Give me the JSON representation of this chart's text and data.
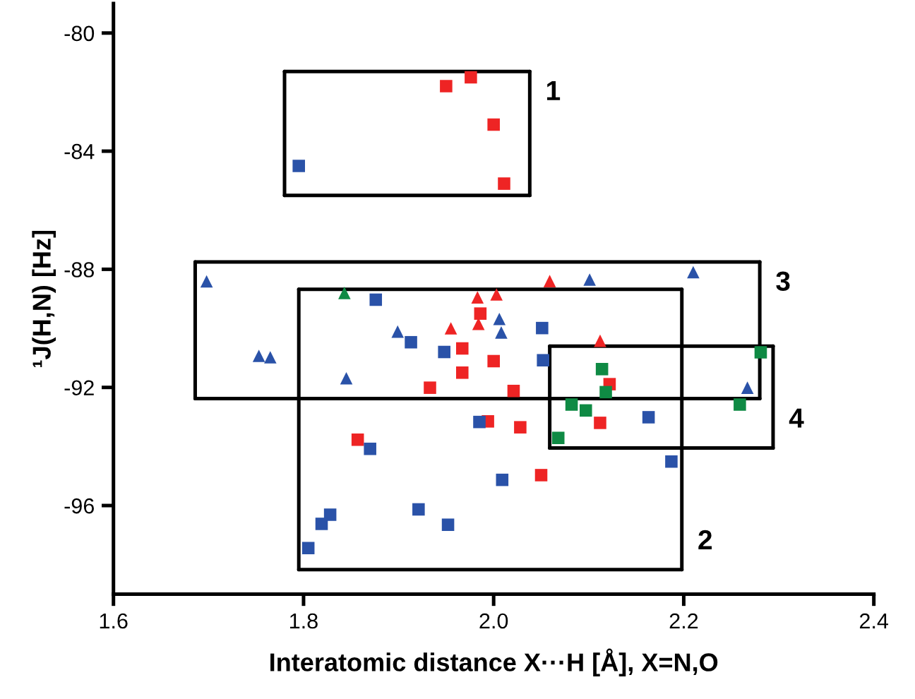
{
  "chart_data": {
    "type": "scatter",
    "xlabel": "Interatomic distance X···H [Å], X=N,O",
    "ylabel": "¹J(H,N) [Hz]",
    "xlim": [
      1.6,
      2.4
    ],
    "xticks": [
      {
        "value": 1.6,
        "label": "1.6"
      },
      {
        "value": 1.8,
        "label": "1.8"
      },
      {
        "value": 2.0,
        "label": "2.0"
      },
      {
        "value": 2.2,
        "label": "2.2"
      },
      {
        "value": 2.4,
        "label": "2.4"
      }
    ],
    "ylim": [
      -99,
      -79
    ],
    "yticks": [
      -80,
      -84,
      -88,
      -92,
      -96
    ],
    "grid": false,
    "legend": false,
    "series": [
      {
        "marker": "square",
        "color": "#ee2424",
        "x": [
          1.95,
          1.976,
          2.0,
          2.011,
          1.986,
          1.967,
          1.967,
          2.0,
          1.933,
          2.021,
          2.122,
          2.112,
          2.028,
          1.994,
          2.05,
          1.857
        ],
        "values": [
          -81.8,
          -81.5,
          -83.1,
          -85.1,
          -89.5,
          -90.68,
          -91.5,
          -91.11,
          -92.01,
          -92.12,
          -91.89,
          -93.2,
          -93.35,
          -93.15,
          -94.97,
          -93.77
        ]
      },
      {
        "marker": "triangle",
        "color": "#ee2424",
        "x": [
          1.983,
          2.003,
          1.955,
          1.984,
          2.059,
          2.112
        ],
        "values": [
          -88.95,
          -88.85,
          -90.0,
          -89.85,
          -88.4,
          -90.42
        ]
      },
      {
        "marker": "square",
        "color": "#2a52a8",
        "x": [
          1.795,
          1.876,
          1.913,
          1.948,
          2.051,
          2.052,
          1.985,
          2.163,
          2.187,
          2.009,
          1.921,
          1.952,
          1.87,
          1.828,
          1.819,
          1.805
        ],
        "values": [
          -84.5,
          -89.03,
          -90.47,
          -90.8,
          -89.99,
          -91.08,
          -93.17,
          -93.01,
          -94.51,
          -95.13,
          -96.13,
          -96.65,
          -94.08,
          -96.31,
          -96.62,
          -97.44
        ]
      },
      {
        "marker": "triangle",
        "color": "#2a52a8",
        "x": [
          1.698,
          1.899,
          1.753,
          1.765,
          2.006,
          2.008,
          2.101,
          2.21,
          1.845,
          2.267
        ],
        "values": [
          -88.41,
          -90.11,
          -90.93,
          -90.98,
          -89.68,
          -90.14,
          -88.35,
          -88.1,
          -91.69,
          -92.01
        ]
      },
      {
        "marker": "square",
        "color": "#0f8a44",
        "x": [
          2.114,
          2.118,
          2.082,
          2.097,
          2.068,
          2.281,
          2.259
        ],
        "values": [
          -91.38,
          -92.16,
          -92.58,
          -92.78,
          -93.71,
          -90.81,
          -92.58
        ]
      },
      {
        "marker": "triangle",
        "color": "#0f8a44",
        "x": [
          1.843
        ],
        "values": [
          -88.8
        ]
      },
      {
        "type": "line",
        "marker": "none",
        "color": "#000000",
        "x": [
          1.78,
          2.038
        ],
        "values": [
          -81.3,
          -81.3
        ]
      },
      {
        "type": "line",
        "marker": "none",
        "color": "#000000",
        "x": [
          1.78,
          2.038
        ],
        "values": [
          -85.5,
          -85.5
        ]
      },
      {
        "type": "line",
        "marker": "none",
        "color": "#000000",
        "x": [
          1.78,
          1.78
        ],
        "values": [
          -81.3,
          -85.5
        ]
      },
      {
        "type": "line",
        "marker": "none",
        "color": "#000000",
        "x": [
          2.038,
          2.038
        ],
        "values": [
          -81.3,
          -85.5
        ]
      },
      {
        "type": "line",
        "marker": "none",
        "color": "#000000",
        "x": [
          1.795,
          2.198
        ],
        "values": [
          -88.68,
          -88.68
        ]
      },
      {
        "type": "line",
        "marker": "none",
        "color": "#000000",
        "x": [
          1.795,
          2.198
        ],
        "values": [
          -98.17,
          -98.17
        ]
      },
      {
        "type": "line",
        "marker": "none",
        "color": "#000000",
        "x": [
          1.795,
          1.795
        ],
        "values": [
          -88.68,
          -98.17
        ]
      },
      {
        "type": "line",
        "marker": "none",
        "color": "#000000",
        "x": [
          2.198,
          2.198
        ],
        "values": [
          -88.68,
          -98.17
        ]
      },
      {
        "type": "line",
        "marker": "none",
        "color": "#000000",
        "x": [
          1.686,
          2.28
        ],
        "values": [
          -87.75,
          -87.75
        ]
      },
      {
        "type": "line",
        "marker": "none",
        "color": "#000000",
        "x": [
          1.686,
          2.28
        ],
        "values": [
          -92.38,
          -92.38
        ]
      },
      {
        "type": "line",
        "marker": "none",
        "color": "#000000",
        "x": [
          1.686,
          1.686
        ],
        "values": [
          -87.75,
          -92.38
        ]
      },
      {
        "type": "line",
        "marker": "none",
        "color": "#000000",
        "x": [
          2.28,
          2.28
        ],
        "values": [
          -87.75,
          -92.38
        ]
      },
      {
        "type": "line",
        "marker": "none",
        "color": "#000000",
        "x": [
          2.059,
          2.294
        ],
        "values": [
          -90.6,
          -90.6
        ]
      },
      {
        "type": "line",
        "marker": "none",
        "color": "#000000",
        "x": [
          2.059,
          2.294
        ],
        "values": [
          -94.05,
          -94.05
        ]
      },
      {
        "type": "line",
        "marker": "none",
        "color": "#000000",
        "x": [
          2.059,
          2.059
        ],
        "values": [
          -90.6,
          -94.05
        ]
      },
      {
        "type": "line",
        "marker": "none",
        "color": "#000000",
        "x": [
          2.294,
          2.294
        ],
        "values": [
          -90.6,
          -94.05
        ]
      }
    ],
    "annotations": [
      {
        "text": "1",
        "x": 2.038,
        "y": -81.3
      },
      {
        "text": "2",
        "x": 2.198,
        "y": -98.17
      },
      {
        "text": "3",
        "x": 2.28,
        "y": -87.75
      },
      {
        "text": "4",
        "x": 2.294,
        "y": -94.05
      }
    ]
  }
}
